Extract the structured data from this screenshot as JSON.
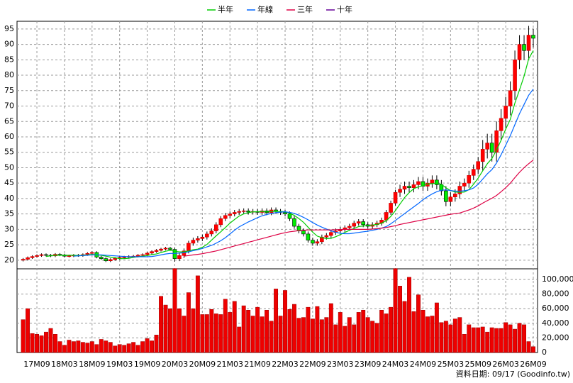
{
  "chart_data": {
    "type": "candlestick",
    "footer": "資料日期: 09/17 (Goodinfo.tw)",
    "legend": "top",
    "grid": true,
    "up_color": "#ff0000",
    "down_color": "#00ee00",
    "categories": [
      null,
      null,
      null,
      "17M09",
      null,
      null,
      null,
      null,
      null,
      "18M03",
      null,
      null,
      null,
      null,
      null,
      "18M09",
      null,
      null,
      null,
      null,
      null,
      "19M03",
      null,
      null,
      null,
      null,
      null,
      "19M09",
      null,
      null,
      null,
      null,
      null,
      "20M03",
      null,
      null,
      null,
      null,
      null,
      "20M09",
      null,
      null,
      null,
      null,
      null,
      "21M03",
      null,
      null,
      null,
      null,
      null,
      "21M09",
      null,
      null,
      null,
      null,
      null,
      "22M03",
      null,
      null,
      null,
      null,
      null,
      "22M09",
      null,
      null,
      null,
      null,
      null,
      "23M03",
      null,
      null,
      null,
      null,
      null,
      "23M09",
      null,
      null,
      null,
      null,
      null,
      "24M03",
      null,
      null,
      null,
      null,
      null,
      "24M09",
      null,
      null,
      null,
      null,
      null,
      "25M03",
      null,
      null,
      null,
      null,
      null,
      "25M09",
      null,
      null,
      null,
      null,
      null,
      "26M03",
      null,
      null,
      null,
      null,
      null,
      "26M09"
    ],
    "open": [
      20.0,
      20.3,
      20.8,
      21.2,
      21.5,
      21.8,
      21.6,
      21.4,
      21.9,
      21.7,
      21.3,
      21.4,
      21.6,
      21.5,
      21.8,
      22.2,
      22.5,
      21.0,
      20.5,
      19.8,
      20.2,
      20.6,
      20.9,
      21.0,
      21.2,
      21.3,
      21.6,
      21.8,
      22.3,
      22.8,
      23.2,
      23.6,
      23.9,
      23.5,
      20.5,
      21.5,
      23.0,
      25.5,
      26.5,
      27.0,
      27.5,
      28.5,
      29.5,
      31.5,
      33.5,
      34.5,
      35.0,
      35.5,
      35.8,
      36.0,
      35.6,
      35.8,
      35.5,
      36.0,
      35.4,
      36.3,
      35.8,
      35.5,
      35.0,
      33.5,
      31.0,
      29.5,
      28.5,
      26.5,
      25.5,
      26.0,
      27.5,
      28.0,
      29.0,
      29.5,
      30.0,
      30.5,
      31.0,
      32.0,
      32.5,
      31.5,
      31.0,
      31.5,
      32.0,
      33.0,
      35.5,
      38.5,
      42.0,
      43.0,
      44.0,
      43.5,
      44.5,
      45.5,
      44.0,
      45.0,
      46.0,
      44.5,
      42.5,
      39.0,
      40.5,
      41.5,
      44.0,
      45.0,
      47.5,
      49.5,
      52.0,
      56.0,
      58.0,
      55.0,
      62.0,
      66.0,
      70.0,
      75.0,
      85.0,
      90.0,
      88.0,
      93.0
    ],
    "high": [
      20.7,
      21.2,
      21.6,
      21.9,
      22.2,
      22.2,
      22.0,
      22.3,
      22.3,
      22.1,
      21.8,
      22.0,
      22.0,
      22.2,
      22.6,
      22.9,
      22.9,
      21.4,
      20.9,
      20.6,
      21.0,
      21.3,
      21.4,
      21.6,
      21.7,
      22.0,
      22.2,
      22.7,
      23.2,
      23.6,
      24.0,
      24.3,
      24.3,
      24.0,
      22.3,
      23.8,
      26.3,
      27.3,
      27.8,
      28.3,
      29.3,
      30.3,
      32.3,
      34.3,
      35.3,
      35.8,
      36.3,
      36.6,
      36.8,
      36.8,
      36.6,
      36.6,
      36.8,
      36.8,
      37.1,
      37.1,
      36.6,
      36.3,
      35.8,
      34.3,
      31.8,
      30.3,
      29.3,
      27.3,
      26.8,
      28.3,
      28.8,
      29.8,
      30.3,
      30.8,
      31.3,
      31.8,
      32.8,
      33.3,
      33.3,
      32.3,
      32.3,
      32.8,
      33.8,
      36.3,
      39.3,
      42.8,
      44.5,
      45.5,
      45.5,
      46.0,
      47.0,
      47.0,
      46.5,
      47.5,
      47.5,
      46.0,
      44.0,
      42.0,
      43.0,
      45.5,
      46.5,
      49.0,
      51.0,
      53.5,
      59.0,
      61.0,
      61.0,
      65.0,
      69.0,
      73.0,
      78.0,
      88.0,
      93.0,
      93.0,
      96.0,
      95.0
    ],
    "low": [
      19.6,
      19.9,
      20.4,
      20.8,
      21.1,
      21.2,
      21.0,
      21.0,
      21.3,
      20.9,
      20.9,
      21.0,
      21.1,
      21.1,
      21.4,
      21.8,
      20.6,
      20.1,
      19.4,
      19.4,
      19.8,
      20.2,
      20.5,
      20.6,
      20.8,
      20.9,
      21.2,
      21.4,
      21.9,
      22.4,
      22.8,
      23.2,
      23.1,
      19.5,
      19.7,
      20.7,
      22.2,
      24.7,
      25.7,
      26.2,
      26.7,
      27.7,
      28.7,
      30.7,
      32.7,
      33.7,
      34.2,
      34.7,
      35.0,
      34.8,
      34.8,
      34.7,
      34.7,
      34.6,
      34.6,
      35.0,
      34.7,
      34.2,
      32.7,
      30.2,
      28.7,
      27.7,
      25.7,
      24.7,
      24.7,
      25.2,
      26.7,
      27.2,
      28.2,
      28.7,
      29.2,
      29.7,
      30.2,
      31.2,
      30.7,
      30.2,
      30.2,
      30.7,
      31.2,
      32.2,
      34.7,
      37.7,
      40.5,
      41.5,
      42.0,
      42.0,
      43.0,
      42.5,
      42.5,
      43.5,
      43.0,
      41.0,
      37.5,
      37.5,
      39.0,
      40.0,
      42.5,
      43.5,
      46.0,
      48.0,
      49.0,
      53.0,
      52.0,
      52.0,
      59.0,
      63.0,
      67.0,
      72.0,
      82.0,
      85.0,
      85.0,
      89.0
    ],
    "close": [
      20.3,
      20.8,
      21.2,
      21.5,
      21.8,
      21.6,
      21.4,
      21.9,
      21.7,
      21.3,
      21.4,
      21.6,
      21.5,
      21.8,
      22.2,
      22.5,
      21.0,
      20.5,
      19.8,
      20.2,
      20.6,
      20.9,
      21.0,
      21.2,
      21.3,
      21.6,
      21.8,
      22.3,
      22.8,
      23.2,
      23.6,
      23.9,
      23.5,
      20.5,
      21.5,
      23.0,
      25.5,
      26.5,
      27.0,
      27.5,
      28.5,
      29.5,
      31.5,
      33.5,
      34.5,
      35.0,
      35.5,
      35.8,
      36.0,
      35.6,
      35.8,
      35.5,
      36.0,
      35.4,
      36.3,
      35.8,
      35.5,
      35.0,
      33.5,
      31.0,
      29.5,
      28.5,
      26.5,
      25.5,
      26.0,
      27.5,
      28.0,
      29.0,
      29.5,
      30.0,
      30.5,
      31.0,
      32.0,
      32.5,
      31.5,
      31.0,
      31.5,
      32.0,
      33.0,
      35.5,
      38.5,
      42.0,
      43.0,
      44.0,
      43.5,
      44.5,
      45.5,
      44.0,
      45.0,
      46.0,
      44.5,
      42.5,
      39.0,
      40.5,
      41.5,
      44.0,
      45.0,
      47.5,
      49.5,
      52.0,
      56.0,
      58.0,
      55.0,
      62.0,
      66.0,
      70.0,
      75.0,
      85.0,
      90.0,
      88.0,
      93.0,
      92.0
    ],
    "ylim": [
      17.2,
      97.5
    ],
    "yticks": [
      20,
      25,
      30,
      35,
      40,
      45,
      50,
      55,
      60,
      65,
      70,
      75,
      80,
      85,
      90,
      95
    ],
    "series": [
      {
        "name": "半年",
        "color": "#00cc00",
        "values": [
          null,
          null,
          null,
          null,
          null,
          21.2,
          21.4,
          21.6,
          21.6,
          21.6,
          21.6,
          21.6,
          21.5,
          21.6,
          21.7,
          21.9,
          21.7,
          21.6,
          21.3,
          21.0,
          20.8,
          20.5,
          20.5,
          20.6,
          20.9,
          21.1,
          21.3,
          21.5,
          21.8,
          22.0,
          22.5,
          22.9,
          23.2,
          22.9,
          22.7,
          22.7,
          23.0,
          23.4,
          23.6,
          24.2,
          25.1,
          26.5,
          27.9,
          29.2,
          30.6,
          32.0,
          33.2,
          34.3,
          35.0,
          35.4,
          35.7,
          35.7,
          35.8,
          35.7,
          35.8,
          35.8,
          35.8,
          35.7,
          35.3,
          34.5,
          33.5,
          32.3,
          30.7,
          29.1,
          27.8,
          27.3,
          27.0,
          27.1,
          27.6,
          28.3,
          29.0,
          29.7,
          30.3,
          30.9,
          31.1,
          31.2,
          31.4,
          31.6,
          32.0,
          32.8,
          34.2,
          36.1,
          38.2,
          40.3,
          41.9,
          43.2,
          43.8,
          44.1,
          44.7,
          44.8,
          45.0,
          44.6,
          43.5,
          42.6,
          42.1,
          42.0,
          42.1,
          42.9,
          44.6,
          46.6,
          49.0,
          51.3,
          53.0,
          55.7,
          58.9,
          62.5,
          65.7,
          71.0,
          75.2,
          79.7,
          85.3,
          88.0
        ]
      },
      {
        "name": "年線",
        "color": "#0066ff",
        "values": [
          null,
          null,
          null,
          null,
          null,
          null,
          null,
          null,
          null,
          null,
          null,
          21.3,
          21.4,
          21.5,
          21.6,
          21.7,
          21.7,
          21.7,
          21.6,
          21.5,
          21.4,
          21.3,
          21.2,
          21.1,
          21.1,
          21.1,
          21.1,
          21.1,
          21.2,
          21.4,
          21.7,
          22.0,
          22.2,
          22.2,
          22.3,
          22.4,
          22.7,
          23.1,
          23.4,
          23.8,
          24.3,
          24.8,
          25.5,
          26.3,
          27.3,
          28.5,
          29.7,
          30.8,
          31.6,
          32.4,
          33.1,
          33.8,
          34.4,
          34.8,
          35.2,
          35.4,
          35.6,
          35.7,
          35.5,
          35.2,
          34.6,
          33.9,
          33.1,
          32.2,
          31.4,
          30.7,
          30.1,
          29.5,
          29.1,
          28.7,
          28.6,
          28.6,
          28.8,
          29.0,
          29.2,
          29.4,
          29.7,
          30.0,
          30.4,
          30.9,
          31.8,
          32.9,
          34.0,
          35.1,
          36.2,
          37.3,
          38.4,
          39.6,
          40.6,
          41.5,
          42.2,
          42.7,
          42.8,
          42.6,
          42.4,
          42.4,
          42.5,
          42.8,
          43.4,
          44.6,
          46.3,
          48.0,
          49.4,
          51.5,
          54.2,
          57.3,
          60.4,
          64.0,
          67.5,
          70.5,
          73.5,
          75.5
        ]
      },
      {
        "name": "三年",
        "color": "#dd0044",
        "values": [
          null,
          null,
          null,
          null,
          null,
          null,
          null,
          null,
          null,
          null,
          null,
          null,
          null,
          null,
          null,
          null,
          null,
          null,
          null,
          null,
          null,
          null,
          null,
          null,
          null,
          null,
          null,
          null,
          null,
          null,
          null,
          null,
          null,
          null,
          null,
          21.3,
          21.5,
          21.7,
          21.9,
          22.1,
          22.4,
          22.7,
          23.0,
          23.4,
          23.8,
          24.2,
          24.6,
          25.0,
          25.4,
          25.8,
          26.2,
          26.6,
          27.0,
          27.4,
          27.8,
          28.2,
          28.6,
          28.9,
          29.2,
          29.4,
          29.6,
          29.7,
          29.8,
          29.8,
          29.8,
          29.8,
          29.8,
          29.8,
          29.9,
          29.9,
          30.0,
          30.0,
          30.0,
          30.0,
          30.0,
          30.0,
          30.1,
          30.2,
          30.4,
          30.6,
          30.9,
          31.2,
          31.6,
          31.9,
          32.2,
          32.5,
          32.8,
          33.1,
          33.4,
          33.7,
          34.0,
          34.3,
          34.6,
          34.9,
          35.1,
          35.3,
          35.8,
          36.3,
          36.9,
          37.6,
          38.5,
          39.3,
          40.1,
          41.0,
          42.2,
          43.5,
          45.0,
          46.8,
          48.5,
          50.0,
          51.3,
          52.5
        ]
      },
      {
        "name": "十年",
        "color": "#660099",
        "values": [
          null,
          null,
          null,
          null,
          null,
          null,
          null,
          null,
          null,
          null,
          null,
          null,
          null,
          null,
          null,
          null,
          null,
          null,
          null,
          null,
          null,
          null,
          null,
          null,
          null,
          null,
          null,
          null,
          null,
          null,
          null,
          null,
          null,
          null,
          null,
          null,
          null,
          null,
          null,
          null,
          null,
          null,
          null,
          null,
          null,
          null,
          null,
          null,
          null,
          null,
          null,
          null,
          null,
          null,
          null,
          null,
          null,
          null,
          null,
          null,
          null,
          null,
          null,
          null,
          null,
          null,
          null,
          null,
          null,
          null,
          null,
          null,
          null,
          null,
          null,
          null,
          null,
          null,
          null,
          null,
          null,
          null,
          null,
          null,
          null,
          null,
          null,
          null,
          null,
          null,
          null,
          null,
          null,
          null,
          null,
          null,
          null,
          null,
          null,
          null,
          null,
          null,
          null,
          null,
          null,
          null,
          null,
          null,
          null,
          null,
          null,
          null
        ]
      }
    ],
    "volume": {
      "color": "#ee0000",
      "values": [
        45000,
        60000,
        26000,
        25000,
        23000,
        28000,
        33000,
        25000,
        15000,
        10000,
        17000,
        15000,
        16000,
        14000,
        13000,
        15000,
        11000,
        18000,
        16000,
        14000,
        9000,
        11000,
        10000,
        12000,
        14000,
        10000,
        15000,
        19000,
        16000,
        24000,
        77000,
        65000,
        60000,
        115000,
        60000,
        50000,
        82000,
        60000,
        105000,
        52000,
        52000,
        59000,
        53000,
        52000,
        73000,
        55000,
        70000,
        35000,
        64000,
        58000,
        50000,
        62000,
        49000,
        58000,
        43000,
        87000,
        50000,
        85000,
        59000,
        66000,
        47000,
        48000,
        62000,
        46000,
        63000,
        45000,
        48000,
        67000,
        38000,
        55000,
        36000,
        48000,
        38000,
        55000,
        58000,
        48000,
        43000,
        40000,
        58000,
        53000,
        62000,
        115000,
        91000,
        70000,
        103000,
        56000,
        79000,
        58000,
        49000,
        50000,
        68000,
        41000,
        43000,
        38000,
        46000,
        48000,
        25000,
        38000,
        34000,
        34000,
        35000,
        28000,
        34000,
        33000,
        33000,
        41000,
        38000,
        32000,
        40000,
        38000,
        15000,
        8000
      ],
      "ylim": [
        0,
        113600
      ],
      "yticks": [
        0,
        {
          "value": 20000,
          "label": "20,000"
        },
        {
          "value": 40000,
          "label": "40,000"
        },
        {
          "value": 60000,
          "label": "60,000"
        },
        {
          "value": 80000,
          "label": "80,000"
        },
        {
          "value": 100000,
          "label": "100,000"
        }
      ]
    }
  }
}
